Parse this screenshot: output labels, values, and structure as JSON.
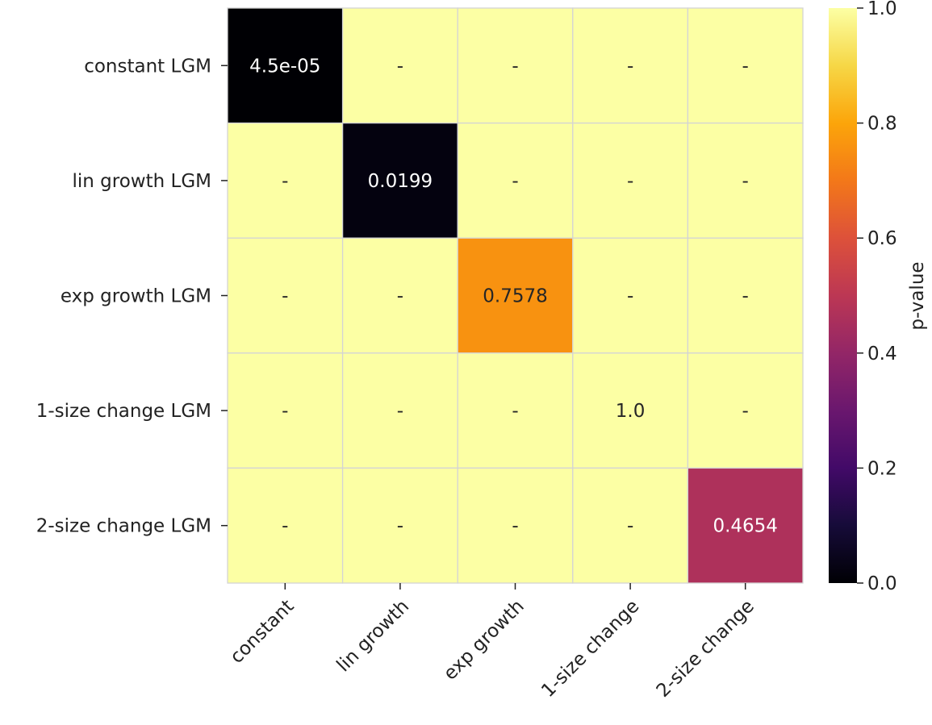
{
  "chart_data": {
    "type": "heatmap",
    "title": "",
    "xlabel": "",
    "ylabel": "",
    "row_labels": [
      "constant LGM",
      "lin growth LGM",
      "exp growth LGM",
      "1-size change LGM",
      "2-size change LGM"
    ],
    "col_labels": [
      "constant",
      "lin growth",
      "exp growth",
      "1-size change",
      "2-size change"
    ],
    "values": [
      [
        4.5e-05,
        1.0,
        1.0,
        1.0,
        1.0
      ],
      [
        1.0,
        0.0199,
        1.0,
        1.0,
        1.0
      ],
      [
        1.0,
        1.0,
        0.7578,
        1.0,
        1.0
      ],
      [
        1.0,
        1.0,
        1.0,
        1.0,
        1.0
      ],
      [
        1.0,
        1.0,
        1.0,
        1.0,
        0.4654
      ]
    ],
    "cell_labels": [
      [
        "4.5e-05",
        "-",
        "-",
        "-",
        "-"
      ],
      [
        "-",
        "0.0199",
        "-",
        "-",
        "-"
      ],
      [
        "-",
        "-",
        "0.7578",
        "-",
        "-"
      ],
      [
        "-",
        "-",
        "-",
        "1.0",
        "-"
      ],
      [
        "-",
        "-",
        "-",
        "-",
        "0.4654"
      ]
    ],
    "colormap": "inferno",
    "vmin": 0.0,
    "vmax": 1.0,
    "colorbar": {
      "label": "p-value",
      "ticks": [
        0.0,
        0.2,
        0.4,
        0.6,
        0.8,
        1.0
      ],
      "tick_labels": [
        "0.0",
        "0.2",
        "0.4",
        "0.6",
        "0.8",
        "1.0"
      ]
    },
    "legend_position": "right",
    "grid": false
  }
}
